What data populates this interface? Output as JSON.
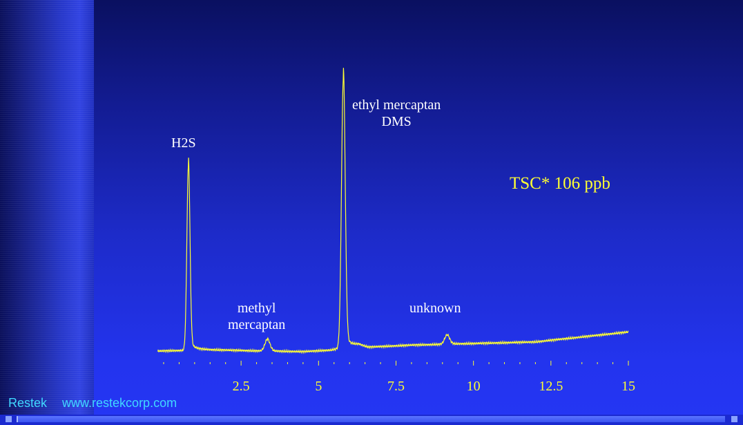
{
  "chart_data": {
    "type": "line",
    "title": "",
    "xlabel": "",
    "ylabel": "",
    "xlim": [
      -0.2,
      15
    ],
    "ylim": [
      0,
      100
    ],
    "grid": false,
    "x_ticks": [
      2.5,
      5,
      7.5,
      10,
      12.5,
      15
    ],
    "x_tick_labels": [
      "2.5",
      "5",
      "7.5",
      "10",
      "12.5",
      "15"
    ],
    "minor_tick_step": 0.5,
    "line_color": "#ffff33",
    "peaks": [
      {
        "x": 0.8,
        "height": 70,
        "width": 0.05
      },
      {
        "x": 3.35,
        "height": 4.5,
        "width": 0.08
      },
      {
        "x": 5.8,
        "height": 102,
        "width": 0.06
      },
      {
        "x": 9.15,
        "height": 3.5,
        "width": 0.08
      }
    ],
    "baseline": [
      [
        -0.2,
        0.5
      ],
      [
        0.7,
        0.8
      ],
      [
        1.0,
        1.2
      ],
      [
        3.0,
        0.6
      ],
      [
        4.5,
        0.3
      ],
      [
        5.4,
        0.9
      ],
      [
        6.3,
        3.0
      ],
      [
        6.6,
        2.0
      ],
      [
        8.0,
        2.8
      ],
      [
        12.0,
        4.0
      ],
      [
        15.0,
        7.8
      ]
    ],
    "annotations": [
      {
        "id": "h2s",
        "lines": [
          "H2S"
        ]
      },
      {
        "id": "methyl",
        "lines": [
          "methyl",
          "mercaptan"
        ]
      },
      {
        "id": "ethyl",
        "lines": [
          "ethyl mercaptan",
          "DMS"
        ]
      },
      {
        "id": "unknown",
        "lines": [
          "unknown"
        ]
      }
    ]
  },
  "tsc": "TSC*  106 ppb",
  "footer": {
    "company": "Restek",
    "url": "www.restekcorp.com"
  },
  "colors": {
    "trace": "#ffff33",
    "footer_text": "#40d8ff",
    "label_text": "#ffffff"
  }
}
